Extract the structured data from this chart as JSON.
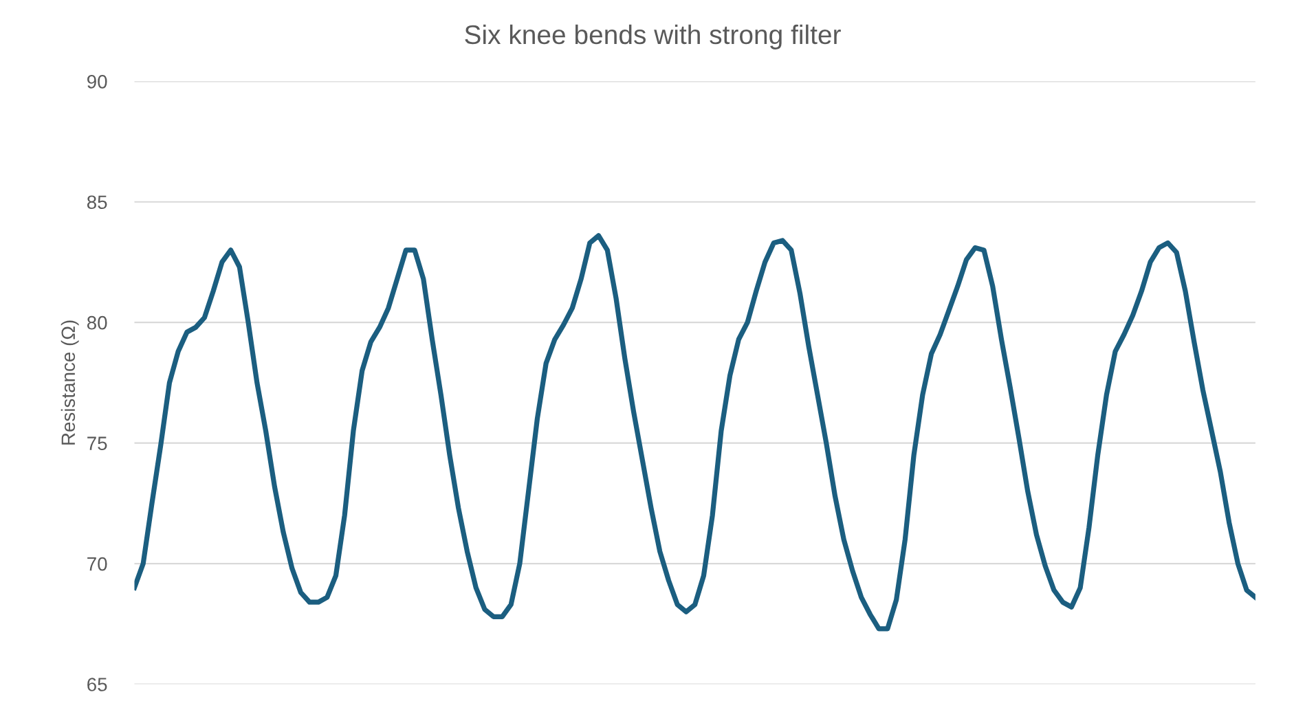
{
  "chart_data": {
    "type": "line",
    "title": "Six knee bends with strong filter",
    "ylabel": "Resistance (Ω)",
    "categories": [
      null,
      null,
      null,
      null,
      null,
      null,
      null,
      null,
      null,
      null,
      null,
      null,
      null,
      null,
      null,
      null,
      null,
      null,
      null,
      null,
      null,
      null,
      null,
      null,
      null,
      null,
      null,
      null,
      null,
      null,
      null,
      null,
      null,
      null,
      null,
      null,
      null,
      null,
      null,
      null,
      null,
      null,
      null,
      null,
      null,
      null,
      null,
      null,
      null,
      null,
      null,
      null,
      null,
      null,
      null,
      null,
      null,
      null,
      null,
      null,
      null,
      null,
      null,
      null,
      null,
      null,
      null,
      null,
      null,
      null,
      null,
      null,
      null,
      null,
      null,
      null,
      null,
      null,
      null,
      null,
      null,
      null,
      null,
      null,
      null,
      null,
      null,
      null,
      null,
      null,
      null,
      null,
      null,
      null,
      null,
      null,
      null,
      null,
      null,
      null,
      null,
      null,
      null,
      null,
      null,
      null,
      null,
      null,
      null,
      null,
      null,
      null,
      null,
      null,
      null,
      null,
      null,
      null,
      null,
      null,
      null,
      null,
      null,
      null,
      null,
      null,
      null,
      null,
      null
    ],
    "series": [
      {
        "color": "#1b5e80",
        "values": [
          69.0,
          70.0,
          72.5,
          74.9,
          77.5,
          78.8,
          79.6,
          79.8,
          80.2,
          81.3,
          82.5,
          83.0,
          82.3,
          80.0,
          77.5,
          75.5,
          73.2,
          71.3,
          69.8,
          68.8,
          68.4,
          68.4,
          68.6,
          69.5,
          72.0,
          75.5,
          78.0,
          79.2,
          79.8,
          80.6,
          81.8,
          83.0,
          83.0,
          81.8,
          79.3,
          77.0,
          74.5,
          72.3,
          70.5,
          69.0,
          68.1,
          67.8,
          67.8,
          68.3,
          70.0,
          73.0,
          76.0,
          78.3,
          79.3,
          79.9,
          80.6,
          81.8,
          83.3,
          83.6,
          83.0,
          81.0,
          78.5,
          76.3,
          74.3,
          72.3,
          70.5,
          69.3,
          68.3,
          68.0,
          68.3,
          69.5,
          72.0,
          75.5,
          77.8,
          79.3,
          80.0,
          81.3,
          82.5,
          83.3,
          83.4,
          83.0,
          81.2,
          79.0,
          77.0,
          75.0,
          72.8,
          71.0,
          69.7,
          68.6,
          67.9,
          67.3,
          67.3,
          68.5,
          71.0,
          74.5,
          77.0,
          78.7,
          79.5,
          80.5,
          81.5,
          82.6,
          83.1,
          83.0,
          81.5,
          79.3,
          77.3,
          75.2,
          73.0,
          71.2,
          69.9,
          68.9,
          68.4,
          68.2,
          69.0,
          71.5,
          74.5,
          77.0,
          78.8,
          79.5,
          80.3,
          81.3,
          82.5,
          83.1,
          83.3,
          82.9,
          81.3,
          79.2,
          77.2,
          75.5,
          73.8,
          71.7,
          70.0,
          68.9,
          68.6
        ]
      }
    ],
    "ylim": [
      65,
      90
    ],
    "yticks": [
      65,
      70,
      75,
      80,
      85,
      90
    ],
    "grid": "y",
    "legend": false,
    "marker": "none",
    "line_style": "solid"
  }
}
